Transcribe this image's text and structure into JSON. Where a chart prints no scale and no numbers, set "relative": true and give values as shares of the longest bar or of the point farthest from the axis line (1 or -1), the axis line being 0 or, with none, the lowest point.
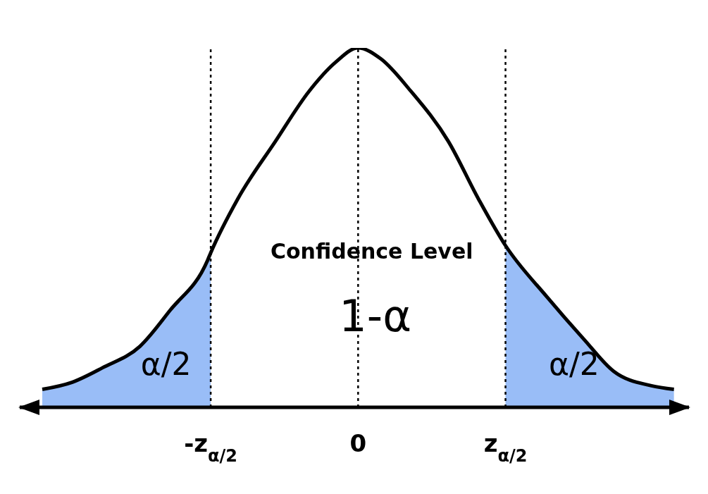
{
  "chart_data": {
    "type": "line",
    "relative": true,
    "xlim": [
      -4.5,
      4.4
    ],
    "xticks": [
      {
        "value": -1.96,
        "label": "-z$_{α/2}$"
      },
      {
        "value": 0,
        "label": "0"
      },
      {
        "value": 1.96,
        "label": "z$_{α/2}$"
      }
    ],
    "series": [
      {
        "type": "area",
        "color": "#99bdf7",
        "x": [
          -4.2,
          -3.8,
          -3.4,
          -2.9,
          -2.5,
          -2.0,
          -1.96
        ],
        "values": [
          0.05,
          0.07,
          0.11,
          0.17,
          0.27,
          0.41,
          0.43
        ]
      },
      {
        "type": "area",
        "color": "#99bdf7",
        "x": [
          1.96,
          2.5,
          3.0,
          3.4,
          3.9,
          4.2
        ],
        "values": [
          0.45,
          0.31,
          0.19,
          0.1,
          0.06,
          0.05
        ]
      },
      {
        "color": "#000000",
        "x": [
          -4.2,
          -3.8,
          -3.4,
          -2.9,
          -2.5,
          -2.0,
          -1.96,
          -1.6,
          -1.1,
          -0.65,
          -0.3,
          0,
          0.3,
          0.7,
          1.2,
          1.6,
          1.96,
          2.5,
          3.0,
          3.4,
          3.9,
          4.2
        ],
        "values": [
          0.05,
          0.07,
          0.11,
          0.17,
          0.27,
          0.41,
          0.43,
          0.58,
          0.74,
          0.88,
          0.96,
          1,
          0.97,
          0.88,
          0.74,
          0.58,
          0.45,
          0.31,
          0.19,
          0.1,
          0.06,
          0.05
        ]
      }
    ],
    "ref_lines": [
      {
        "axis": "x",
        "value": -1.96,
        "color": "#000000",
        "line_style": "dotted"
      },
      {
        "axis": "x",
        "value": 0,
        "color": "#000000",
        "line_style": "dotted"
      },
      {
        "axis": "x",
        "value": 1.96,
        "color": "#000000",
        "line_style": "dotted"
      }
    ],
    "annotations": [
      "Confidence Level",
      "1-α",
      "α/2",
      "α/2"
    ],
    "grid": false,
    "legend": false
  }
}
